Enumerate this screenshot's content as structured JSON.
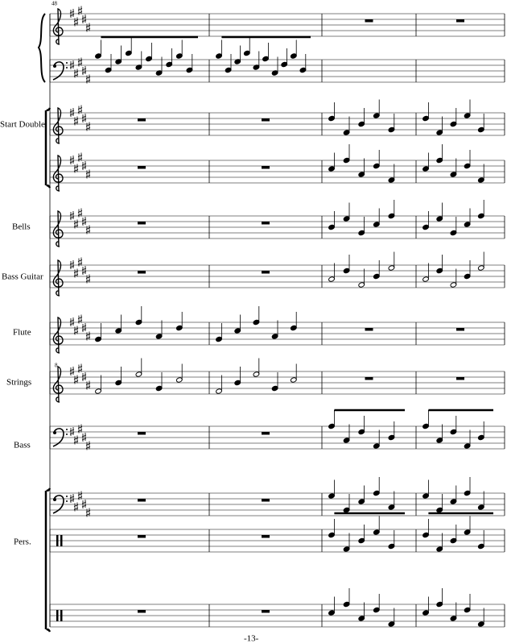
{
  "measure_number": "48",
  "instruments": [
    "Start Double",
    "Bells",
    "Bass Guitar",
    "Flute",
    "Strings",
    "Bass",
    "Pers."
  ],
  "octave_mark": "8",
  "page_number": "-13-"
}
